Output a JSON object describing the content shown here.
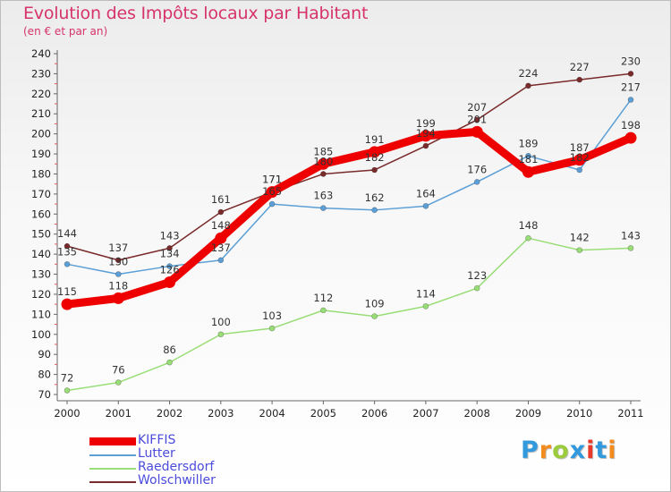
{
  "chart_data": {
    "type": "line",
    "title": "Evolution des Impôts locaux par Habitant",
    "subtitle": "(en € et par an)",
    "categories": [
      "2000",
      "2001",
      "2002",
      "2003",
      "2004",
      "2005",
      "2006",
      "2007",
      "2008",
      "2009",
      "2010",
      "2011"
    ],
    "ylim": [
      70,
      240
    ],
    "yticks": [
      "70",
      "80",
      "90",
      "100",
      "110",
      "120",
      "130",
      "140",
      "150",
      "160",
      "170",
      "180",
      "190",
      "200",
      "210",
      "220",
      "230",
      "240"
    ],
    "series": [
      {
        "name": "Wolschwiller",
        "color": "#7a2a2a",
        "values": [
          144,
          137,
          143,
          161,
          171,
          180,
          182,
          194,
          207,
          224,
          227,
          230
        ]
      },
      {
        "name": "Raedersdorf",
        "color": "#99dd77",
        "values": [
          72,
          76,
          86,
          100,
          103,
          112,
          109,
          114,
          123,
          148,
          142,
          143
        ]
      },
      {
        "name": "Lutter",
        "color": "#5b9fd6",
        "values": [
          135,
          130,
          134,
          137,
          165,
          163,
          162,
          164,
          176,
          189,
          182,
          217
        ]
      },
      {
        "name": "KIFFIS",
        "color": "#ee0000",
        "values": [
          115,
          118,
          126,
          148,
          171,
          185,
          191,
          199,
          201,
          181,
          187,
          198
        ]
      }
    ],
    "legend_order": [
      "KIFFIS",
      "Lutter",
      "Raedersdorf",
      "Wolschwiller"
    ],
    "grid": false
  },
  "logo": {
    "text": "Proxiti",
    "colors": [
      "#3399dd",
      "#f28c1e",
      "#9ccc3c",
      "#3399dd",
      "#e8392b",
      "#3399dd",
      "#f28c1e"
    ]
  }
}
